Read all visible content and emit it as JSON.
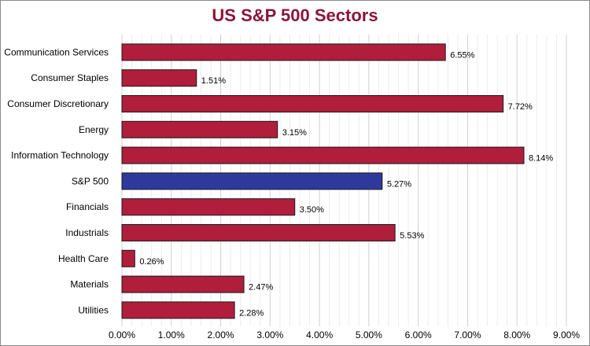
{
  "chart_data": {
    "type": "bar",
    "orientation": "horizontal",
    "title": "US S&P 500 Sectors",
    "xlabel": "",
    "ylabel": "",
    "xlim": [
      0,
      9
    ],
    "grid": true,
    "categories": [
      "Communication Services",
      "Consumer Staples",
      "Consumer Discretionary",
      "Energy",
      "Information Technology",
      "S&P 500",
      "Financials",
      "Industrials",
      "Health Care",
      "Materials",
      "Utilities"
    ],
    "values": [
      6.55,
      1.51,
      7.72,
      3.15,
      8.14,
      5.27,
      3.5,
      5.53,
      0.26,
      2.47,
      2.28
    ],
    "data_labels": [
      "6.55%",
      "1.51%",
      "7.72%",
      "3.15%",
      "8.14%",
      "5.27%",
      "3.50%",
      "5.53%",
      "0.26%",
      "2.47%",
      "2.28%"
    ],
    "x_ticks": [
      "0.00%",
      "1.00%",
      "2.00%",
      "3.00%",
      "4.00%",
      "5.00%",
      "6.00%",
      "7.00%",
      "8.00%",
      "9.00%"
    ],
    "highlight_category": "S&P 500",
    "colors": {
      "bar": "#b01e3c",
      "highlight": "#2e3a9b",
      "title": "#8b1538",
      "grid": "#d9d9d9"
    }
  }
}
